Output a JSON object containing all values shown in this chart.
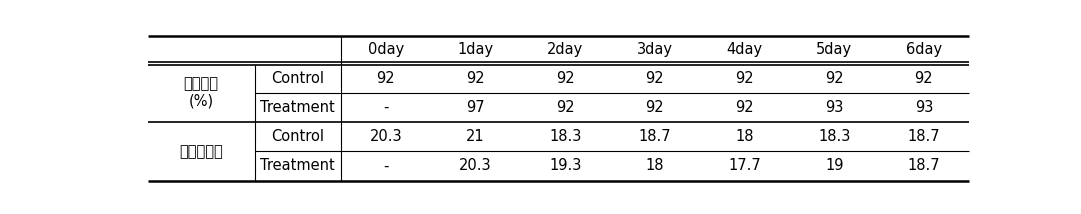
{
  "col_headers": [
    "0day",
    "1day",
    "2day",
    "3day",
    "4day",
    "5day",
    "6day"
  ],
  "group1_label": "수분함량\n(%)",
  "group2_label": "잎표면온도",
  "rows": [
    {
      "subgroup": "Control",
      "values": [
        "92",
        "92",
        "92",
        "92",
        "92",
        "92",
        "92"
      ]
    },
    {
      "subgroup": "Treatment",
      "values": [
        "-",
        "97",
        "92",
        "92",
        "92",
        "93",
        "93"
      ]
    },
    {
      "subgroup": "Control",
      "values": [
        "20.3",
        "21",
        "18.3",
        "18.7",
        "18",
        "18.3",
        "18.7"
      ]
    },
    {
      "subgroup": "Treatment",
      "values": [
        "-",
        "20.3",
        "19.3",
        "18",
        "17.7",
        "19",
        "18.7"
      ]
    }
  ],
  "bg_color": "#ffffff",
  "line_color": "#000000",
  "text_color": "#000000",
  "header_fontsize": 10.5,
  "cell_fontsize": 10.5,
  "group_fontsize": 10.5
}
